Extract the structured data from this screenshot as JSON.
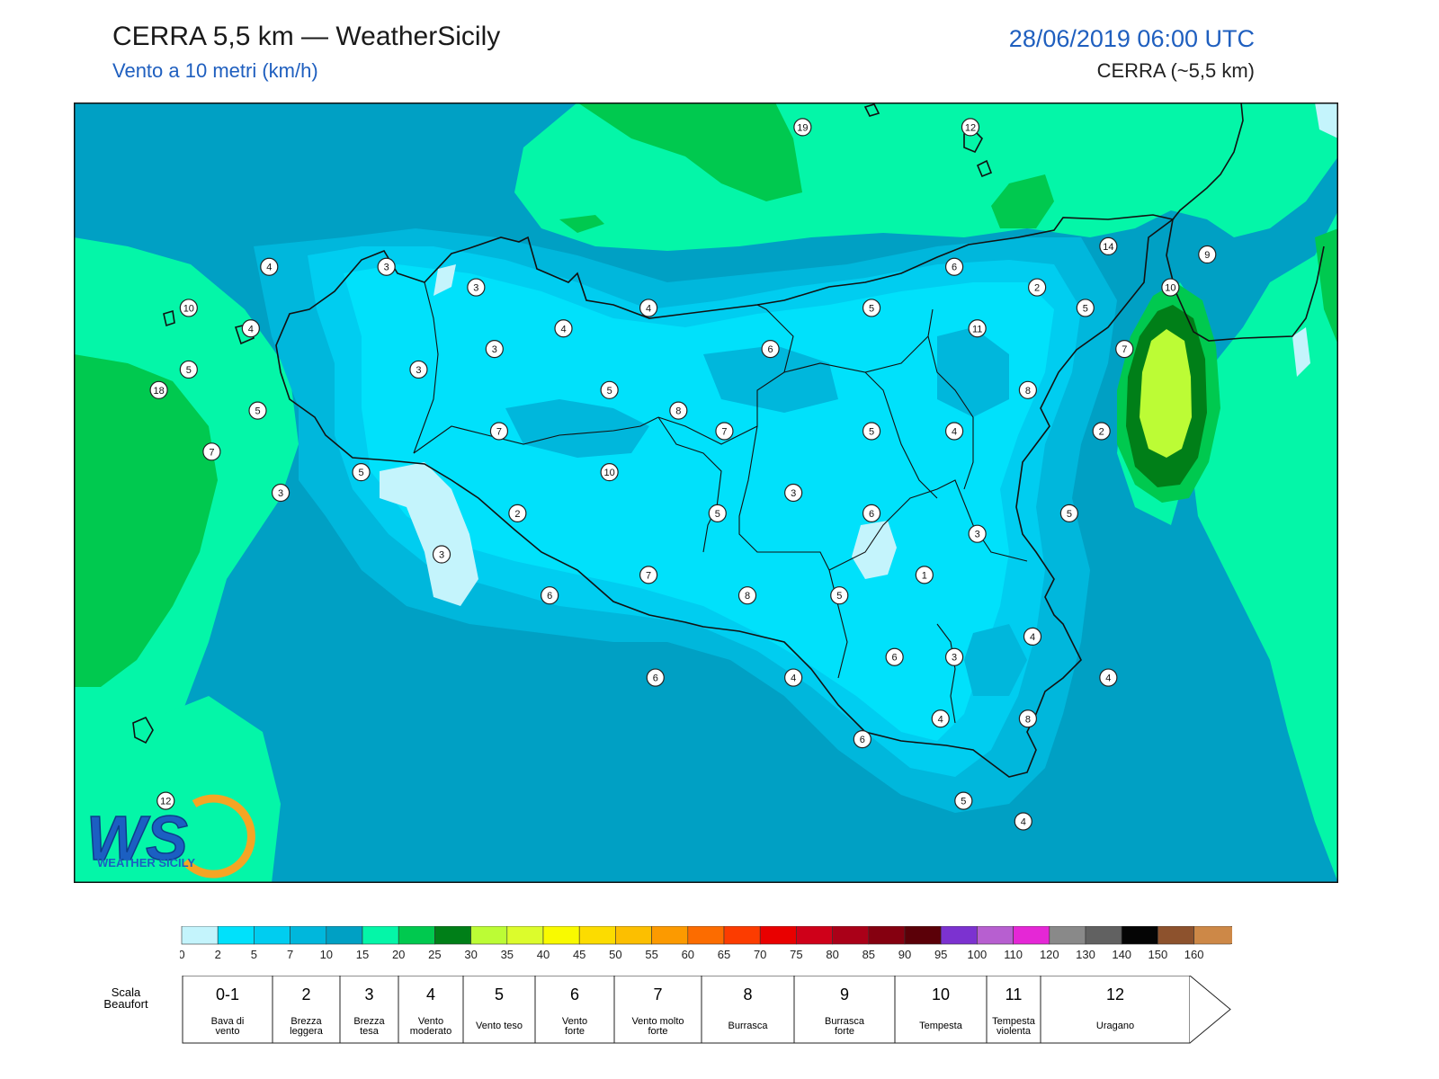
{
  "header": {
    "title": "CERRA 5,5 km — WeatherSicily",
    "subtitle": "Vento a 10 metri (km/h)",
    "datetime": "28/06/2019 06:00 UTC",
    "model": "CERRA (~5,5 km)"
  },
  "logo": {
    "text": "WEATHER SICILY",
    "letters": "WS"
  },
  "stations": [
    {
      "value": "19",
      "lon": 14.22,
      "lat": 38.83
    },
    {
      "value": "12",
      "lon": 14.95,
      "lat": 38.83
    },
    {
      "value": "14",
      "lon": 15.55,
      "lat": 38.25
    },
    {
      "value": "9",
      "lon": 15.98,
      "lat": 38.21
    },
    {
      "value": "4",
      "lon": 11.9,
      "lat": 38.15
    },
    {
      "value": "3",
      "lon": 12.41,
      "lat": 38.15
    },
    {
      "value": "3",
      "lon": 12.8,
      "lat": 38.05
    },
    {
      "value": "6",
      "lon": 14.88,
      "lat": 38.15
    },
    {
      "value": "2",
      "lon": 15.24,
      "lat": 38.05
    },
    {
      "value": "10",
      "lon": 15.82,
      "lat": 38.05
    },
    {
      "value": "10",
      "lon": 11.55,
      "lat": 37.95
    },
    {
      "value": "4",
      "lon": 13.55,
      "lat": 37.95
    },
    {
      "value": "5",
      "lon": 14.52,
      "lat": 37.95
    },
    {
      "value": "5",
      "lon": 15.45,
      "lat": 37.95
    },
    {
      "value": "4",
      "lon": 11.82,
      "lat": 37.85
    },
    {
      "value": "3",
      "lon": 12.88,
      "lat": 37.75
    },
    {
      "value": "4",
      "lon": 13.18,
      "lat": 37.85
    },
    {
      "value": "6",
      "lon": 14.08,
      "lat": 37.75
    },
    {
      "value": "11",
      "lon": 14.98,
      "lat": 37.85
    },
    {
      "value": "7",
      "lon": 15.62,
      "lat": 37.75
    },
    {
      "value": "5",
      "lon": 11.55,
      "lat": 37.65
    },
    {
      "value": "3",
      "lon": 12.55,
      "lat": 37.65
    },
    {
      "value": "18",
      "lon": 11.42,
      "lat": 37.55
    },
    {
      "value": "5",
      "lon": 13.38,
      "lat": 37.55
    },
    {
      "value": "8",
      "lon": 13.68,
      "lat": 37.45
    },
    {
      "value": "8",
      "lon": 15.2,
      "lat": 37.55
    },
    {
      "value": "5",
      "lon": 11.85,
      "lat": 37.45
    },
    {
      "value": "7",
      "lon": 12.9,
      "lat": 37.35
    },
    {
      "value": "7",
      "lon": 13.88,
      "lat": 37.35
    },
    {
      "value": "5",
      "lon": 14.52,
      "lat": 37.35
    },
    {
      "value": "4",
      "lon": 14.88,
      "lat": 37.35
    },
    {
      "value": "2",
      "lon": 15.52,
      "lat": 37.35
    },
    {
      "value": "7",
      "lon": 11.65,
      "lat": 37.25
    },
    {
      "value": "5",
      "lon": 12.3,
      "lat": 37.15
    },
    {
      "value": "10",
      "lon": 13.38,
      "lat": 37.15
    },
    {
      "value": "3",
      "lon": 11.95,
      "lat": 37.05
    },
    {
      "value": "3",
      "lon": 14.18,
      "lat": 37.05
    },
    {
      "value": "2",
      "lon": 12.98,
      "lat": 36.95
    },
    {
      "value": "5",
      "lon": 13.85,
      "lat": 36.95
    },
    {
      "value": "6",
      "lon": 14.52,
      "lat": 36.95
    },
    {
      "value": "5",
      "lon": 15.38,
      "lat": 36.95
    },
    {
      "value": "3",
      "lon": 14.98,
      "lat": 36.85
    },
    {
      "value": "3",
      "lon": 12.65,
      "lat": 36.75
    },
    {
      "value": "7",
      "lon": 13.55,
      "lat": 36.65
    },
    {
      "value": "1",
      "lon": 14.75,
      "lat": 36.65
    },
    {
      "value": "6",
      "lon": 13.12,
      "lat": 36.55
    },
    {
      "value": "8",
      "lon": 13.98,
      "lat": 36.55
    },
    {
      "value": "5",
      "lon": 14.38,
      "lat": 36.55
    },
    {
      "value": "4",
      "lon": 15.22,
      "lat": 36.35
    },
    {
      "value": "6",
      "lon": 14.62,
      "lat": 36.25
    },
    {
      "value": "3",
      "lon": 14.88,
      "lat": 36.25
    },
    {
      "value": "6",
      "lon": 13.58,
      "lat": 36.15
    },
    {
      "value": "4",
      "lon": 14.18,
      "lat": 36.15
    },
    {
      "value": "4",
      "lon": 15.55,
      "lat": 36.15
    },
    {
      "value": "4",
      "lon": 14.82,
      "lat": 35.95
    },
    {
      "value": "8",
      "lon": 15.2,
      "lat": 35.95
    },
    {
      "value": "6",
      "lon": 14.48,
      "lat": 35.85
    },
    {
      "value": "12",
      "lon": 11.45,
      "lat": 35.55
    },
    {
      "value": "5",
      "lon": 14.92,
      "lat": 35.55
    },
    {
      "value": "4",
      "lon": 15.18,
      "lat": 35.45
    }
  ],
  "colorbar": {
    "ticks": [
      "0",
      "2",
      "5",
      "7",
      "10",
      "15",
      "20",
      "25",
      "30",
      "35",
      "40",
      "45",
      "50",
      "55",
      "60",
      "65",
      "70",
      "75",
      "80",
      "85",
      "90",
      "95",
      "100",
      "110",
      "120",
      "130",
      "140",
      "150",
      "160"
    ],
    "colors": [
      "#c4f4fc",
      "#00e1fb",
      "#00cdf0",
      "#00b7dc",
      "#00a0c4",
      "#04f6a8",
      "#00c94f",
      "#007f18",
      "#bcfc35",
      "#dcfc2c",
      "#f9fa00",
      "#fcdc00",
      "#fcbf00",
      "#fc9a00",
      "#fc6c00",
      "#fc3c00",
      "#e90000",
      "#cf0019",
      "#aa0018",
      "#850010",
      "#5b0008",
      "#7c32d0",
      "#b75fd0",
      "#e527d6",
      "#898989",
      "#616161",
      "#050505",
      "#8d522d",
      "#cd8847"
    ]
  },
  "beaufort": {
    "label_line1": "Scala",
    "label_line2": "Beaufort",
    "classes": [
      {
        "force": "0-1",
        "line1": "Bava di",
        "line2": "vento"
      },
      {
        "force": "2",
        "line1": "Brezza",
        "line2": "leggera"
      },
      {
        "force": "3",
        "line1": "Brezza",
        "line2": "tesa"
      },
      {
        "force": "4",
        "line1": "Vento",
        "line2": "moderato"
      },
      {
        "force": "5",
        "line1": "Vento teso",
        "line2": ""
      },
      {
        "force": "6",
        "line1": "Vento",
        "line2": "forte"
      },
      {
        "force": "7",
        "line1": "Vento molto",
        "line2": "forte"
      },
      {
        "force": "8",
        "line1": "Burrasca",
        "line2": ""
      },
      {
        "force": "9",
        "line1": "Burrasca",
        "line2": "forte"
      },
      {
        "force": "10",
        "line1": "Tempesta",
        "line2": ""
      },
      {
        "force": "11",
        "line1": "Tempesta",
        "line2": "violenta"
      },
      {
        "force": "12",
        "line1": "Uragano",
        "line2": ""
      }
    ]
  }
}
